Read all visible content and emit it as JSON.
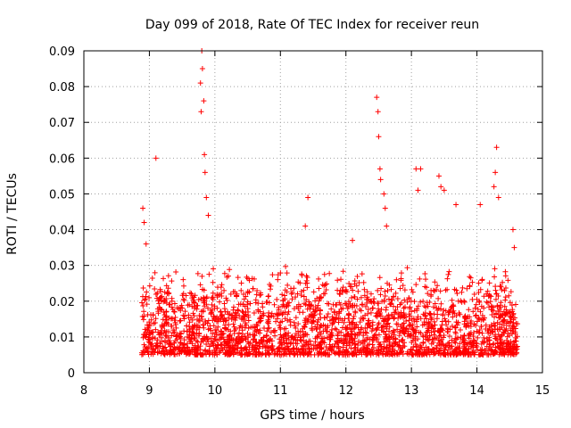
{
  "chart_data": {
    "type": "scatter",
    "title": "Day 099 of 2018, Rate Of TEC Index for receiver reun",
    "xlabel": "GPS time / hours",
    "ylabel": "ROTI / TECUs",
    "xlim": [
      8,
      15
    ],
    "ylim": [
      0,
      0.09
    ],
    "xticks": [
      "8",
      "9",
      "10",
      "11",
      "12",
      "13",
      "14",
      "15"
    ],
    "yticks": [
      "0",
      "0.01",
      "0.02",
      "0.03",
      "0.04",
      "0.05",
      "0.06",
      "0.07",
      "0.08",
      "0.09"
    ],
    "grid": true,
    "marker": "+",
    "color": "#ff0000",
    "series": [
      {
        "name": "ROTI",
        "notable_points": [
          {
            "x": 8.9,
            "y": 0.046
          },
          {
            "x": 8.92,
            "y": 0.042
          },
          {
            "x": 8.95,
            "y": 0.036
          },
          {
            "x": 9.1,
            "y": 0.06
          },
          {
            "x": 9.78,
            "y": 0.081
          },
          {
            "x": 9.8,
            "y": 0.09
          },
          {
            "x": 9.81,
            "y": 0.085
          },
          {
            "x": 9.79,
            "y": 0.073
          },
          {
            "x": 9.83,
            "y": 0.076
          },
          {
            "x": 9.84,
            "y": 0.061
          },
          {
            "x": 9.85,
            "y": 0.056
          },
          {
            "x": 9.87,
            "y": 0.049
          },
          {
            "x": 9.9,
            "y": 0.044
          },
          {
            "x": 11.42,
            "y": 0.049
          },
          {
            "x": 11.38,
            "y": 0.041
          },
          {
            "x": 12.1,
            "y": 0.037
          },
          {
            "x": 12.47,
            "y": 0.077
          },
          {
            "x": 12.49,
            "y": 0.073
          },
          {
            "x": 12.5,
            "y": 0.066
          },
          {
            "x": 12.52,
            "y": 0.057
          },
          {
            "x": 12.53,
            "y": 0.054
          },
          {
            "x": 12.58,
            "y": 0.05
          },
          {
            "x": 12.6,
            "y": 0.046
          },
          {
            "x": 12.62,
            "y": 0.041
          },
          {
            "x": 13.07,
            "y": 0.057
          },
          {
            "x": 13.14,
            "y": 0.057
          },
          {
            "x": 13.1,
            "y": 0.051
          },
          {
            "x": 13.42,
            "y": 0.055
          },
          {
            "x": 13.45,
            "y": 0.052
          },
          {
            "x": 13.5,
            "y": 0.051
          },
          {
            "x": 13.68,
            "y": 0.047
          },
          {
            "x": 14.05,
            "y": 0.047
          },
          {
            "x": 14.3,
            "y": 0.063
          },
          {
            "x": 14.28,
            "y": 0.056
          },
          {
            "x": 14.26,
            "y": 0.052
          },
          {
            "x": 14.33,
            "y": 0.049
          },
          {
            "x": 14.55,
            "y": 0.04
          },
          {
            "x": 14.57,
            "y": 0.035
          }
        ],
        "baseline_range": {
          "x": [
            8.88,
            14.62
          ],
          "y_typical": [
            0.005,
            0.03
          ]
        }
      }
    ]
  }
}
